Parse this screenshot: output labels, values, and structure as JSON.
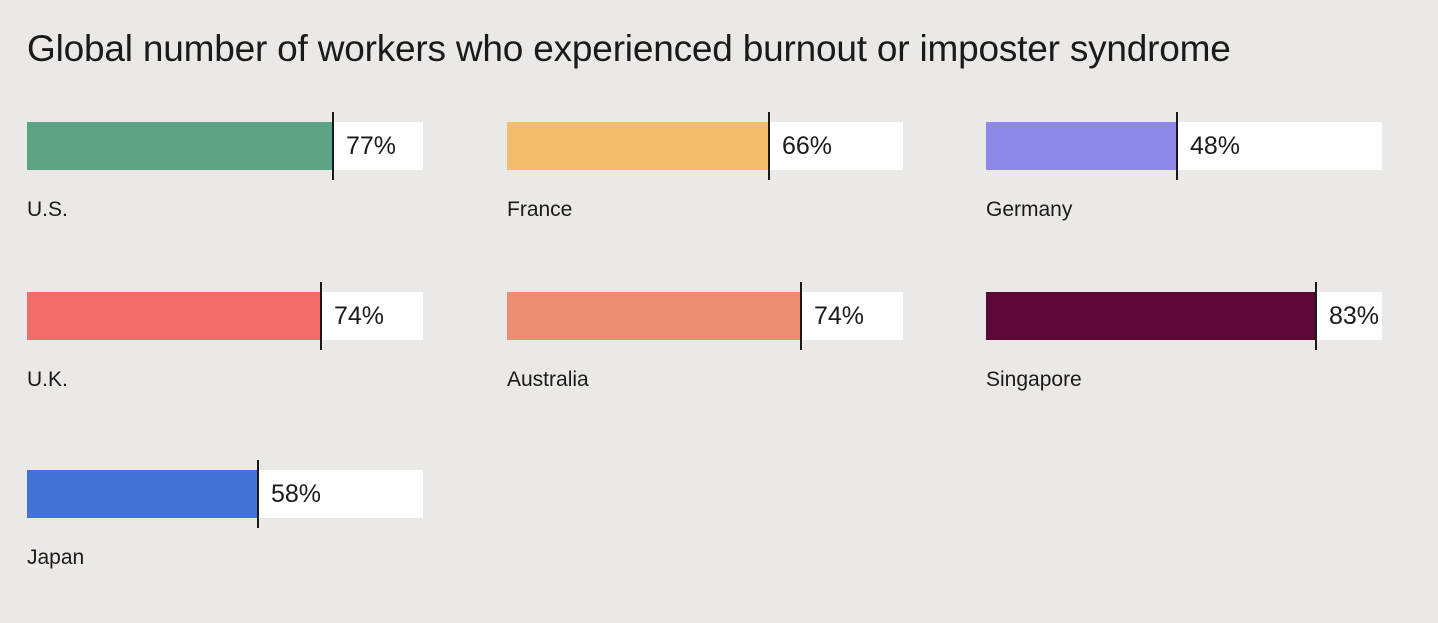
{
  "chart_data": {
    "type": "bar",
    "title": "Global number of workers who experienced burnout or imposter syndrome",
    "unit": "%",
    "ylim": [
      0,
      100
    ],
    "categories": [
      "U.S.",
      "France",
      "Germany",
      "U.K.",
      "Australia",
      "Singapore",
      "Japan"
    ],
    "values": [
      77,
      66,
      48,
      74,
      74,
      83,
      58
    ],
    "labels": [
      "77%",
      "66%",
      "48%",
      "74%",
      "74%",
      "83%",
      "58%"
    ],
    "colors": [
      "#5ea384",
      "#f2be6e",
      "#8d87e8",
      "#f26c6c",
      "#ec8d72",
      "#5c0836",
      "#4472d6"
    ]
  }
}
